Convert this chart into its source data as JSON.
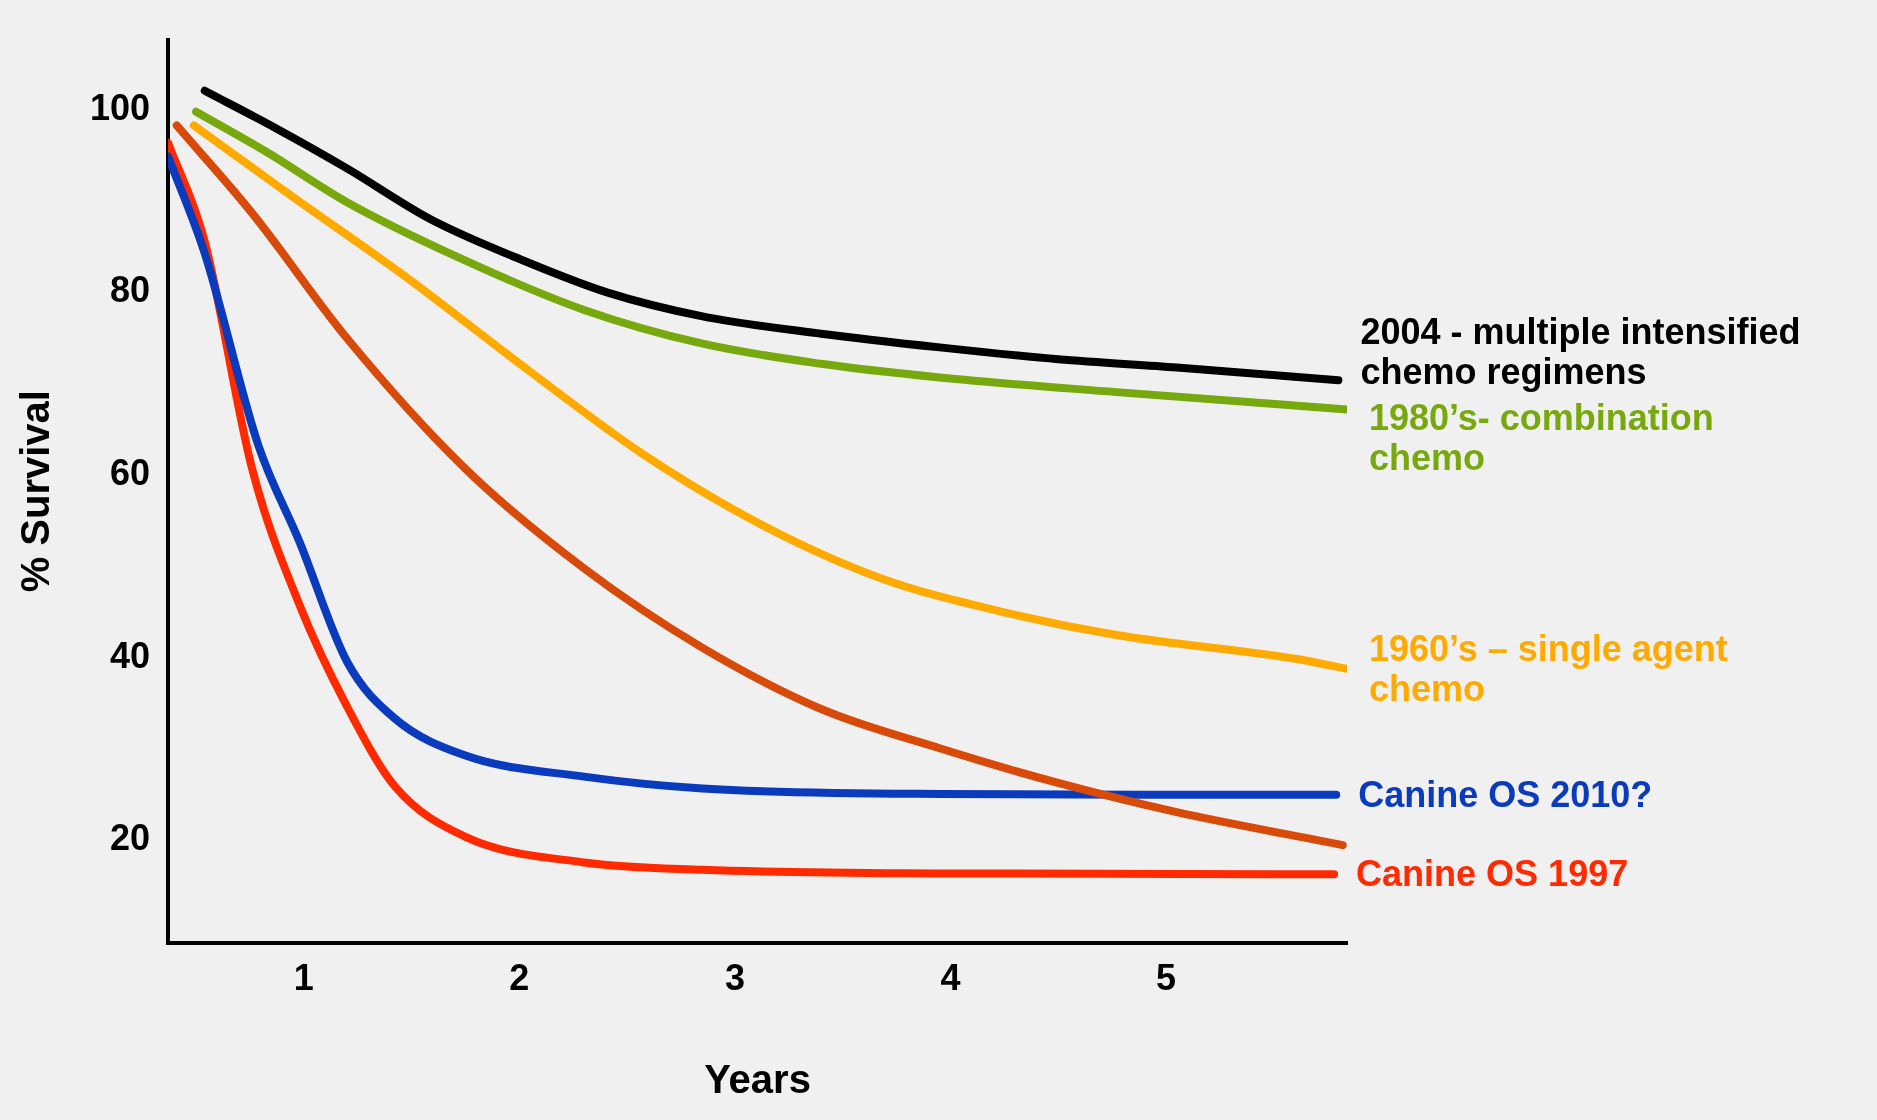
{
  "chart_data": {
    "type": "line",
    "xlabel": "Years",
    "ylabel": "% Survival",
    "xlim": [
      0.37,
      5.84
    ],
    "ylim": [
      8.8,
      107.7
    ],
    "xticks": [
      1,
      2,
      3,
      4,
      5
    ],
    "yticks": [
      20,
      40,
      60,
      80,
      100
    ],
    "grid": false,
    "legend": false,
    "marker": "none",
    "line_style": "solid",
    "series": [
      {
        "name": "2004 - multiple intensified chemo regimens",
        "color": "#000000",
        "x": [
          0.54,
          0.87,
          1.2,
          1.59,
          2.03,
          2.41,
          2.85,
          3.4,
          3.95,
          4.5,
          5.05,
          5.8
        ],
        "values": [
          102.1,
          98.0,
          93.6,
          88.0,
          83.4,
          80.0,
          77.4,
          75.5,
          74.0,
          72.7,
          71.8,
          70.4
        ]
      },
      {
        "name": "1980’s-  combination chemo",
        "color": "#77a80d",
        "x": [
          0.5,
          0.82,
          1.2,
          1.75,
          2.3,
          2.85,
          3.4,
          3.95,
          4.77,
          5.84
        ],
        "values": [
          99.8,
          95.5,
          89.9,
          83.5,
          78.1,
          74.4,
          72.2,
          70.7,
          69.1,
          67.2
        ]
      },
      {
        "name": "1960’s – single agent chemo",
        "color": "#ffaa00",
        "x": [
          0.49,
          0.93,
          1.48,
          2.03,
          2.58,
          3.13,
          3.68,
          4.23,
          4.77,
          5.6,
          5.84
        ],
        "values": [
          98.3,
          90.8,
          81.6,
          71.7,
          62.2,
          54.5,
          48.7,
          45.1,
          42.5,
          39.9,
          38.8
        ]
      },
      {
        "color": "#d84a0a",
        "x": [
          0.41,
          0.76,
          1.2,
          1.75,
          2.3,
          2.85,
          3.4,
          3.95,
          4.5,
          5.05,
          5.82
        ],
        "values": [
          98.3,
          88.7,
          75.0,
          60.7,
          49.8,
          41.1,
          34.4,
          30.1,
          26.3,
          23.1,
          19.5
        ]
      },
      {
        "name": "Canine OS 2010?",
        "color": "#0b3bbd",
        "x": [
          0.37,
          0.54,
          0.79,
          0.98,
          1.2,
          1.42,
          1.75,
          2.3,
          2.85,
          3.95,
          5.79
        ],
        "values": [
          94.9,
          84.3,
          63.2,
          52.7,
          39.6,
          33.4,
          29.3,
          27.0,
          25.7,
          25.1,
          25.0
        ]
      },
      {
        "name": "Canine OS 1997",
        "color": "#ff2a00",
        "x": [
          0.37,
          0.54,
          0.76,
          0.98,
          1.2,
          1.42,
          1.75,
          2.3,
          2.85,
          3.95,
          5.78
        ],
        "values": [
          96.4,
          85.6,
          60.7,
          45.8,
          34.7,
          26.0,
          20.4,
          17.6,
          16.8,
          16.4,
          16.3
        ]
      }
    ]
  }
}
